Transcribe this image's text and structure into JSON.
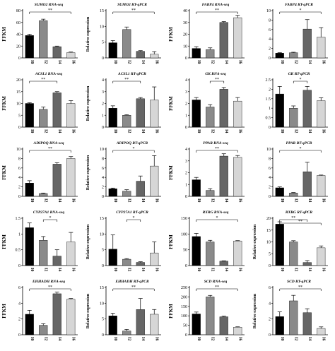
{
  "colors": {
    "bar_fills": [
      "#000000",
      "#8a8a8a",
      "#666666",
      "#d6d6d6"
    ],
    "axis": "#000000"
  },
  "chart_data": [
    {
      "type": "bar",
      "title": "SUMO2 RNA-seq",
      "ylabel": "FFKM",
      "categories": [
        "I0",
        "I2",
        "I4",
        "I6"
      ],
      "values": [
        38,
        63,
        19,
        9
      ],
      "errors": [
        2,
        2.5,
        1,
        1
      ],
      "ylim": [
        0,
        80
      ],
      "yticks": [
        0,
        20,
        40,
        60,
        80
      ],
      "significance": [
        {
          "from": 0,
          "to": 3,
          "label": "**"
        }
      ]
    },
    {
      "type": "bar",
      "title": "SUMO2 RT-qPCR",
      "ylabel": "Relative expression",
      "categories": [
        "I0",
        "I2",
        "I4",
        "I6"
      ],
      "values": [
        4.8,
        9,
        2.1,
        1.2
      ],
      "errors": [
        0.7,
        0.8,
        0.2,
        0.8
      ],
      "ylim": [
        0,
        15
      ],
      "yticks": [
        0,
        5,
        10,
        15
      ],
      "significance": [
        {
          "from": 0,
          "to": 3,
          "label": "**"
        }
      ]
    },
    {
      "type": "bar",
      "title": "FABP4 RNA-seq",
      "ylabel": "FFKM",
      "categories": [
        "I0",
        "I2",
        "I4",
        "I6"
      ],
      "values": [
        8,
        7,
        30,
        34
      ],
      "errors": [
        1.5,
        1.5,
        0.7,
        2
      ],
      "ylim": [
        0,
        40
      ],
      "yticks": [
        0,
        10,
        20,
        30,
        40
      ],
      "significance": [
        {
          "from": 0,
          "to": 3,
          "label": "**"
        }
      ]
    },
    {
      "type": "bar",
      "title": "FABP4 RT-qPCR",
      "ylabel": "",
      "categories": [
        "I0",
        "I2",
        "I4",
        "I6"
      ],
      "values": [
        1,
        1.1,
        6.1,
        4.4
      ],
      "errors": [
        0.1,
        0.1,
        2,
        2
      ],
      "ylim": [
        0,
        10
      ],
      "yticks": [
        0,
        2,
        4,
        6,
        8,
        10
      ],
      "significance": [
        {
          "from": 0,
          "to": 3,
          "label": "*"
        }
      ]
    },
    {
      "type": "bar",
      "title": "ACSL1 RNA-seq",
      "ylabel": "FFKM",
      "categories": [
        "I0",
        "I2",
        "I4",
        "I6"
      ],
      "values": [
        10,
        7.5,
        14.5,
        10
      ],
      "errors": [
        0.3,
        1,
        0.5,
        1.2
      ],
      "ylim": [
        0,
        20
      ],
      "yticks": [
        0,
        5,
        10,
        15,
        20
      ],
      "significance": [
        {
          "from": 0,
          "to": 2,
          "label": "**"
        }
      ]
    },
    {
      "type": "bar",
      "title": "ACSL1 RT-qPCR",
      "ylabel": "Relative expression",
      "categories": [
        "I0",
        "I2",
        "I4",
        "I6"
      ],
      "values": [
        1.6,
        1.0,
        2.4,
        2.3
      ],
      "errors": [
        0.2,
        0.05,
        0.1,
        1.1
      ],
      "ylim": [
        0,
        4
      ],
      "yticks": [
        0,
        1,
        2,
        3,
        4
      ],
      "significance": [
        {
          "from": 0,
          "to": 2,
          "label": "**"
        }
      ]
    },
    {
      "type": "bar",
      "title": "GK RNA-seq",
      "ylabel": "FFKM",
      "categories": [
        "I0",
        "I2",
        "I4",
        "I6"
      ],
      "values": [
        2.3,
        1.7,
        3.2,
        2.2
      ],
      "errors": [
        0.2,
        0.2,
        0.15,
        0.3
      ],
      "ylim": [
        0,
        4
      ],
      "yticks": [
        0,
        1,
        2,
        3,
        4
      ],
      "significance": [
        {
          "from": 1,
          "to": 2,
          "label": "**"
        }
      ]
    },
    {
      "type": "bar",
      "title": "GK RT-qPCR",
      "ylabel": "",
      "categories": [
        "I0",
        "I2",
        "I4",
        "I6"
      ],
      "values": [
        1.75,
        1.0,
        1.95,
        1.4
      ],
      "errors": [
        0.4,
        0.12,
        0.2,
        0.15
      ],
      "ylim": [
        0,
        2.5
      ],
      "yticks": [
        0,
        0.5,
        1.0,
        1.5,
        2.0,
        2.5
      ],
      "significance": [
        {
          "from": 1,
          "to": 2,
          "label": "*"
        }
      ]
    },
    {
      "type": "bar",
      "title": "ADIPOQ RNA-seq",
      "ylabel": "FFKM",
      "categories": [
        "I0",
        "I2",
        "I4",
        "I6"
      ],
      "values": [
        2.8,
        0.6,
        6.8,
        8
      ],
      "errors": [
        0.5,
        0.1,
        0.3,
        0.4
      ],
      "ylim": [
        0,
        10
      ],
      "yticks": [
        0,
        2,
        4,
        6,
        8,
        10
      ],
      "significance": [
        {
          "from": 0,
          "to": 3,
          "label": "**"
        }
      ]
    },
    {
      "type": "bar",
      "title": "ADIPOQ RT-qPCR",
      "ylabel": "Relative expression",
      "categories": [
        "I0",
        "I2",
        "I4",
        "I6"
      ],
      "values": [
        1.6,
        1.1,
        3.2,
        6.4
      ],
      "errors": [
        0.15,
        0.3,
        1.1,
        2.2
      ],
      "ylim": [
        0,
        10
      ],
      "yticks": [
        0,
        2,
        4,
        6,
        8,
        10
      ],
      "significance": [
        {
          "from": 0,
          "to": 3,
          "label": "*"
        }
      ]
    },
    {
      "type": "bar",
      "title": "PPAR RNA-seq",
      "ylabel": "FFKM",
      "categories": [
        "I0",
        "I2",
        "I4",
        "I6"
      ],
      "values": [
        1.4,
        0.5,
        3.4,
        3.3
      ],
      "errors": [
        0.2,
        0.15,
        0.2,
        0.15
      ],
      "ylim": [
        0,
        4
      ],
      "yticks": [
        0,
        1,
        2,
        3,
        4
      ],
      "significance": [
        {
          "from": 0,
          "to": 3,
          "label": "**"
        }
      ]
    },
    {
      "type": "bar",
      "title": "PPAR RT-qPCR",
      "ylabel": "",
      "categories": [
        "I0",
        "I2",
        "I4",
        "I6"
      ],
      "values": [
        1.8,
        0.7,
        5.2,
        4.4
      ],
      "errors": [
        0.2,
        0.1,
        2,
        0.1
      ],
      "ylim": [
        0,
        10
      ],
      "yticks": [
        0,
        2,
        4,
        6,
        8,
        10
      ],
      "significance": [
        {
          "from": 0,
          "to": 3,
          "label": "*"
        }
      ]
    },
    {
      "type": "bar",
      "title": "CYP27A1 RNA-seq",
      "ylabel": "FFKM",
      "categories": [
        "I0",
        "I2",
        "I4",
        "I6"
      ],
      "values": [
        1.2,
        0.8,
        0.3,
        0.75
      ],
      "errors": [
        0.15,
        0.12,
        0.2,
        0.3
      ],
      "ylim": [
        0,
        1.5
      ],
      "yticks": [
        0,
        0.5,
        1.0,
        1.5
      ],
      "significance": [
        {
          "from": 1,
          "to": 2,
          "label": "*"
        }
      ]
    },
    {
      "type": "bar",
      "title": "CYP27A1 RT-qPCR",
      "ylabel": "Relative expression",
      "categories": [
        "I0",
        "I2",
        "I4",
        "I6"
      ],
      "values": [
        5.2,
        2,
        1,
        4
      ],
      "errors": [
        4.5,
        0.2,
        0.2,
        3.5
      ],
      "ylim": [
        0,
        15
      ],
      "yticks": [
        0,
        5,
        10,
        15
      ],
      "significance": [
        {
          "from": 1,
          "to": 2,
          "label": "*"
        }
      ]
    },
    {
      "type": "bar",
      "title": "RXRG RNA-seq",
      "ylabel": "FFKM",
      "categories": [
        "I0",
        "I2",
        "I4",
        "I6"
      ],
      "values": [
        92,
        75,
        14,
        78
      ],
      "errors": [
        10,
        5,
        1,
        1
      ],
      "ylim": [
        0,
        150
      ],
      "yticks": [
        0,
        50,
        100,
        150
      ],
      "significance": [
        {
          "from": 0,
          "to": 3,
          "label": "*"
        }
      ]
    },
    {
      "type": "bar",
      "title": "RXRG RT-qPCR",
      "ylabel": "Relative expression",
      "categories": [
        "I0",
        "I2",
        "I4",
        "I6"
      ],
      "values": [
        17.5,
        10,
        1.3,
        7.5
      ],
      "errors": [
        1,
        0.5,
        0.8,
        0.8
      ],
      "ylim": [
        0,
        20
      ],
      "yticks": [
        0,
        5,
        10,
        15,
        20
      ],
      "significance": [
        {
          "from": 0,
          "to": 2,
          "label": "**"
        },
        {
          "from": 0,
          "to": 3,
          "label": "**"
        }
      ]
    },
    {
      "type": "bar",
      "title": "EHHADH RNA-seq",
      "ylabel": "FFKM",
      "categories": [
        "I0",
        "I2",
        "I4",
        "I6"
      ],
      "values": [
        2.6,
        1.2,
        5.2,
        4.5
      ],
      "errors": [
        0.5,
        0.2,
        0.2,
        0.1
      ],
      "ylim": [
        0,
        6
      ],
      "yticks": [
        0,
        2,
        4,
        6
      ],
      "significance": [
        {
          "from": 0,
          "to": 3,
          "label": "**"
        }
      ]
    },
    {
      "type": "bar",
      "title": "EHHADH RT-qPCR",
      "ylabel": "Relative expression",
      "categories": [
        "I0",
        "I2",
        "I4",
        "I6"
      ],
      "values": [
        6,
        1.2,
        8,
        6.5
      ],
      "errors": [
        0.8,
        0.5,
        3.5,
        1.5
      ],
      "ylim": [
        0,
        15
      ],
      "yticks": [
        0,
        5,
        10,
        15
      ],
      "significance": [
        {
          "from": 0,
          "to": 3,
          "label": "**"
        }
      ]
    },
    {
      "type": "bar",
      "title": "SCD RNA-seq",
      "ylabel": "FFKM",
      "categories": [
        "I0",
        "I2",
        "I4",
        "I6"
      ],
      "values": [
        110,
        200,
        95,
        40
      ],
      "errors": [
        10,
        8,
        3,
        2
      ],
      "ylim": [
        0,
        250
      ],
      "yticks": [
        0,
        50,
        100,
        150,
        200,
        250
      ],
      "significance": [
        {
          "from": 0,
          "to": 3,
          "label": "**"
        }
      ]
    },
    {
      "type": "bar",
      "title": "SCD RT-qPCR",
      "ylabel": "Relative expression",
      "categories": [
        "I0",
        "I2",
        "I4",
        "I6"
      ],
      "values": [
        2.3,
        4.3,
        2.8,
        0.8
      ],
      "errors": [
        0.6,
        0.7,
        0.5,
        0.2
      ],
      "ylim": [
        0,
        6
      ],
      "yticks": [
        0,
        2,
        4,
        6
      ],
      "significance": [
        {
          "from": 0,
          "to": 3,
          "label": "**"
        }
      ]
    }
  ]
}
